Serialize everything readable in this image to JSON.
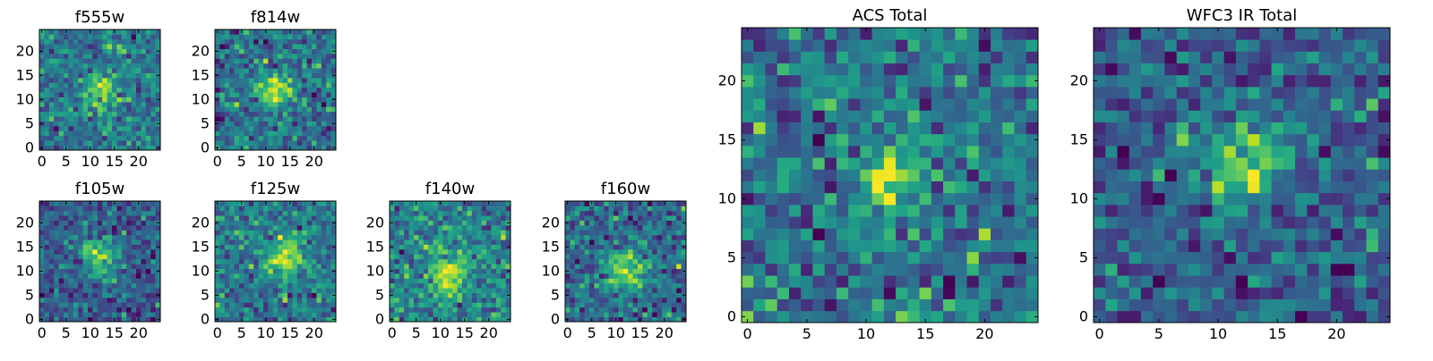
{
  "figure_title": "",
  "chart_data": [
    {
      "type": "heatmap",
      "title": "f555w",
      "size": 25,
      "xticks": [
        0,
        5,
        10,
        15,
        20
      ],
      "yticks": [
        0,
        5,
        10,
        15,
        20
      ],
      "peak": [
        12,
        12
      ],
      "peak_width": 2.5,
      "noise": 0.34,
      "colormap": "viridis",
      "seed": 11
    },
    {
      "type": "heatmap",
      "title": "f814w",
      "size": 25,
      "xticks": [
        0,
        5,
        10,
        15,
        20
      ],
      "yticks": [
        0,
        5,
        10,
        15,
        20
      ],
      "peak": [
        12,
        12
      ],
      "peak_width": 2.5,
      "noise": 0.32,
      "colormap": "viridis",
      "seed": 23
    },
    {
      "type": "heatmap",
      "title": "f105w",
      "size": 25,
      "xticks": [
        0,
        5,
        10,
        15,
        20
      ],
      "yticks": [
        0,
        5,
        10,
        15,
        20
      ],
      "peak": [
        12,
        13
      ],
      "peak_width": 3.0,
      "noise": 0.3,
      "colormap": "viridis",
      "seed": 37
    },
    {
      "type": "heatmap",
      "title": "f125w",
      "size": 25,
      "xticks": [
        0,
        5,
        10,
        15,
        20
      ],
      "yticks": [
        0,
        5,
        10,
        15,
        20
      ],
      "peak": [
        14,
        13
      ],
      "peak_width": 3.0,
      "noise": 0.3,
      "colormap": "viridis",
      "seed": 41
    },
    {
      "type": "heatmap",
      "title": "f140w",
      "size": 25,
      "xticks": [
        0,
        5,
        10,
        15,
        20
      ],
      "yticks": [
        0,
        5,
        10,
        15,
        20
      ],
      "peak": [
        12,
        9
      ],
      "peak_width": 3.0,
      "noise": 0.28,
      "colormap": "viridis",
      "seed": 53
    },
    {
      "type": "heatmap",
      "title": "f160w",
      "size": 25,
      "xticks": [
        0,
        5,
        10,
        15,
        20
      ],
      "yticks": [
        0,
        5,
        10,
        15,
        20
      ],
      "peak": [
        12,
        10
      ],
      "peak_width": 3.0,
      "noise": 0.28,
      "colormap": "viridis",
      "seed": 67
    },
    {
      "type": "heatmap",
      "title": "ACS Total",
      "size": 25,
      "xticks": [
        0,
        5,
        10,
        15,
        20
      ],
      "yticks": [
        0,
        5,
        10,
        15,
        20
      ],
      "peak": [
        12,
        12
      ],
      "peak_width": 2.0,
      "noise": 0.3,
      "colormap": "viridis",
      "seed": 79
    },
    {
      "type": "heatmap",
      "title": "WFC3 IR Total",
      "size": 25,
      "xticks": [
        0,
        5,
        10,
        15,
        20
      ],
      "yticks": [
        0,
        5,
        10,
        15,
        20
      ],
      "peak": [
        12,
        13
      ],
      "peak_width": 2.5,
      "noise": 0.26,
      "colormap": "viridis",
      "seed": 97
    }
  ]
}
